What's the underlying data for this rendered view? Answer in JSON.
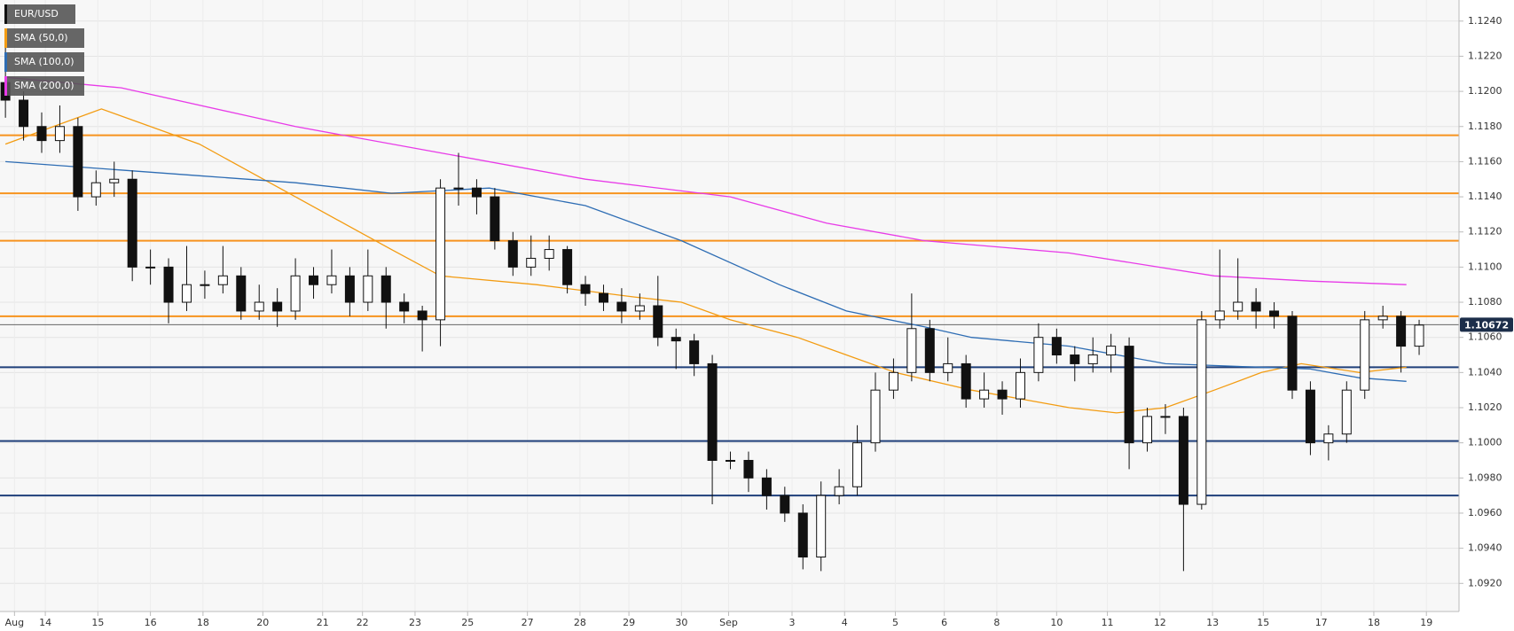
{
  "chart_data": {
    "type": "candlestick",
    "title": "EUR/USD",
    "x": [
      0,
      1,
      2,
      3,
      4,
      5,
      6,
      7,
      8,
      9,
      10,
      11,
      12,
      13,
      14,
      15,
      16,
      17,
      18,
      19,
      20,
      21,
      22,
      23,
      24,
      25,
      26,
      27,
      28,
      29,
      30,
      31,
      32,
      33,
      34,
      35,
      36,
      37,
      38,
      39,
      40,
      41,
      42,
      43,
      44,
      45,
      46,
      47,
      48,
      49,
      50,
      51,
      52,
      53,
      54,
      55,
      56,
      57,
      58,
      59,
      60,
      61,
      62,
      63,
      64,
      65,
      66,
      67,
      68,
      69,
      70,
      71,
      72,
      73,
      74,
      75,
      76,
      77,
      78
    ],
    "open": [
      1.1205,
      1.1195,
      1.118,
      1.1172,
      1.118,
      1.114,
      1.1148,
      1.115,
      1.11,
      1.11,
      1.108,
      1.109,
      1.109,
      1.1095,
      1.1075,
      1.108,
      1.1075,
      1.1095,
      1.109,
      1.1095,
      1.108,
      1.1095,
      1.108,
      1.1075,
      1.107,
      1.1145,
      1.1145,
      1.114,
      1.1115,
      1.11,
      1.1105,
      1.111,
      1.109,
      1.1085,
      1.108,
      1.1075,
      1.1078,
      1.106,
      1.1058,
      1.1045,
      1.099,
      1.099,
      1.098,
      1.097,
      1.096,
      1.0935,
      1.097,
      1.0975,
      1.1,
      1.103,
      1.104,
      1.1065,
      1.104,
      1.1045,
      1.1025,
      1.103,
      1.1025,
      1.104,
      1.106,
      1.105,
      1.1045,
      1.105,
      1.1055,
      1.1,
      1.1015,
      1.1015,
      1.0965,
      1.107,
      1.1075,
      1.108,
      1.1075,
      1.1072,
      1.103,
      1.1,
      1.1005,
      1.103,
      1.107,
      1.1072,
      1.1055
    ],
    "high": [
      1.1225,
      1.12,
      1.1188,
      1.1192,
      1.1185,
      1.1155,
      1.116,
      1.1155,
      1.111,
      1.1105,
      1.1112,
      1.1098,
      1.1112,
      1.11,
      1.109,
      1.1088,
      1.1105,
      1.11,
      1.111,
      1.11,
      1.111,
      1.11,
      1.1085,
      1.1078,
      1.115,
      1.1165,
      1.115,
      1.1145,
      1.112,
      1.1118,
      1.1118,
      1.1112,
      1.1095,
      1.109,
      1.1088,
      1.1085,
      1.1095,
      1.1065,
      1.1062,
      1.105,
      1.0995,
      1.0995,
      1.0985,
      1.0975,
      1.0965,
      1.0978,
      1.0985,
      1.101,
      1.104,
      1.1048,
      1.1085,
      1.107,
      1.106,
      1.105,
      1.104,
      1.1035,
      1.1048,
      1.1068,
      1.1065,
      1.1055,
      1.106,
      1.1062,
      1.106,
      1.102,
      1.1022,
      1.102,
      1.1075,
      1.111,
      1.1105,
      1.1088,
      1.108,
      1.1075,
      1.1035,
      1.101,
      1.1035,
      1.1075,
      1.1078,
      1.1075,
      1.107
    ],
    "low": [
      1.1185,
      1.1172,
      1.1165,
      1.1165,
      1.1132,
      1.1135,
      1.114,
      1.1092,
      1.109,
      1.1068,
      1.1075,
      1.1082,
      1.1085,
      1.107,
      1.107,
      1.1066,
      1.107,
      1.1082,
      1.1085,
      1.1072,
      1.1075,
      1.1065,
      1.1068,
      1.1052,
      1.1055,
      1.1135,
      1.113,
      1.111,
      1.1095,
      1.1095,
      1.1098,
      1.1085,
      1.1078,
      1.1075,
      1.1068,
      1.107,
      1.1055,
      1.1042,
      1.1038,
      1.0965,
      1.0985,
      1.0972,
      1.0962,
      1.0955,
      1.0928,
      1.0927,
      1.0965,
      1.097,
      1.0995,
      1.1025,
      1.1035,
      1.1035,
      1.1035,
      1.102,
      1.102,
      1.1016,
      1.102,
      1.1035,
      1.1045,
      1.1035,
      1.104,
      1.104,
      1.0985,
      1.0995,
      1.1005,
      1.0927,
      1.0962,
      1.1065,
      1.107,
      1.1065,
      1.1065,
      1.1025,
      1.0993,
      1.099,
      1.1,
      1.1025,
      1.1065,
      1.104,
      1.105
    ],
    "close": [
      1.1195,
      1.118,
      1.1172,
      1.118,
      1.114,
      1.1148,
      1.115,
      1.11,
      1.11,
      1.108,
      1.109,
      1.109,
      1.1095,
      1.1075,
      1.108,
      1.1075,
      1.1095,
      1.109,
      1.1095,
      1.108,
      1.1095,
      1.108,
      1.1075,
      1.107,
      1.1145,
      1.1145,
      1.114,
      1.1115,
      1.11,
      1.1105,
      1.111,
      1.109,
      1.1085,
      1.108,
      1.1075,
      1.1078,
      1.106,
      1.1058,
      1.1045,
      1.099,
      1.099,
      1.098,
      1.097,
      1.096,
      1.0935,
      1.097,
      1.0975,
      1.1,
      1.103,
      1.104,
      1.1065,
      1.104,
      1.1045,
      1.1025,
      1.103,
      1.1025,
      1.104,
      1.106,
      1.105,
      1.1045,
      1.105,
      1.1055,
      1.1,
      1.1015,
      1.1015,
      1.0965,
      1.107,
      1.1075,
      1.108,
      1.1075,
      1.1072,
      1.103,
      1.1,
      1.1005,
      1.103,
      1.107,
      1.1072,
      1.1055,
      1.1067
    ],
    "series": [
      {
        "name": "SMA (50,0)",
        "color": "#f39c12",
        "x": [
          0,
          5.3,
          10.7,
          16,
          21.3,
          24,
          29.3,
          34.7,
          37.3,
          40,
          43.7,
          46.4,
          49.1,
          53.3,
          56,
          58.7,
          61.3,
          64,
          66.7,
          69.3,
          71.5,
          74.7,
          77.3
        ],
        "values": [
          1.117,
          1.119,
          1.117,
          1.114,
          1.111,
          1.1095,
          1.109,
          1.1083,
          1.108,
          1.107,
          1.106,
          1.105,
          1.104,
          1.103,
          1.1025,
          1.102,
          1.1017,
          1.102,
          1.103,
          1.104,
          1.1045,
          1.104,
          1.1043
        ]
      },
      {
        "name": "SMA (100,0)",
        "color": "#2e6db4",
        "x": [
          0,
          10.7,
          16,
          21.3,
          26.7,
          32,
          37.3,
          42.7,
          46.4,
          50.7,
          53.3,
          58.7,
          64,
          69.3,
          72,
          74.7,
          77.3
        ],
        "values": [
          1.116,
          1.1152,
          1.1148,
          1.1142,
          1.1145,
          1.1135,
          1.1115,
          1.109,
          1.1075,
          1.1066,
          1.106,
          1.1055,
          1.1045,
          1.1043,
          1.1042,
          1.1037,
          1.1035
        ]
      },
      {
        "name": "SMA (200,0)",
        "color": "#e83be8",
        "x": [
          0,
          6.4,
          16,
          24,
          32,
          40,
          45.3,
          50.7,
          58.7,
          66.7,
          72,
          77.3
        ],
        "values": [
          1.1208,
          1.1202,
          1.118,
          1.1165,
          1.115,
          1.114,
          1.1125,
          1.1115,
          1.1108,
          1.1095,
          1.1092,
          1.109
        ]
      }
    ],
    "levels": [
      {
        "value": 1.1175,
        "color": "#f7931e"
      },
      {
        "value": 1.1142,
        "color": "#f7931e"
      },
      {
        "value": 1.1115,
        "color": "#f7931e"
      },
      {
        "value": 1.1072,
        "color": "#f7931e"
      },
      {
        "value": 1.1043,
        "color": "#1f3f7a"
      },
      {
        "value": 1.1001,
        "color": "#1f3f7a"
      },
      {
        "value": 1.097,
        "color": "#1f3f7a"
      }
    ],
    "last_price": 1.10672,
    "xlim": [
      -0.3,
      80.2
    ],
    "ylim": [
      1.0904,
      1.1252
    ],
    "yticks": [
      {
        "value": 1.124,
        "label": "1.1240"
      },
      {
        "value": 1.122,
        "label": "1.1220"
      },
      {
        "value": 1.12,
        "label": "1.1200"
      },
      {
        "value": 1.118,
        "label": "1.1180"
      },
      {
        "value": 1.116,
        "label": "1.1160"
      },
      {
        "value": 1.114,
        "label": "1.1140"
      },
      {
        "value": 1.112,
        "label": "1.1120"
      },
      {
        "value": 1.11,
        "label": "1.1100"
      },
      {
        "value": 1.108,
        "label": "1.1080"
      },
      {
        "value": 1.106,
        "label": "1.1060"
      },
      {
        "value": 1.104,
        "label": "1.1040"
      },
      {
        "value": 1.102,
        "label": "1.1020"
      },
      {
        "value": 1.1,
        "label": "1.1000"
      },
      {
        "value": 1.098,
        "label": "1.0980"
      },
      {
        "value": 1.096,
        "label": "1.0960"
      },
      {
        "value": 1.094,
        "label": "1.0940"
      },
      {
        "value": 1.092,
        "label": "1.0920"
      }
    ],
    "xticks": [
      {
        "value": 0.5,
        "label": "Aug"
      },
      {
        "value": 2.2,
        "label": "14"
      },
      {
        "value": 5.1,
        "label": "15"
      },
      {
        "value": 8,
        "label": "16"
      },
      {
        "value": 10.9,
        "label": "18"
      },
      {
        "value": 14.2,
        "label": "20"
      },
      {
        "value": 17.5,
        "label": "21"
      },
      {
        "value": 19.7,
        "label": "22"
      },
      {
        "value": 22.6,
        "label": "23"
      },
      {
        "value": 25.5,
        "label": "25"
      },
      {
        "value": 28.8,
        "label": "27"
      },
      {
        "value": 31.7,
        "label": "28"
      },
      {
        "value": 34.4,
        "label": "29"
      },
      {
        "value": 37.3,
        "label": "30"
      },
      {
        "value": 39.9,
        "label": "Sep"
      },
      {
        "value": 43.4,
        "label": "3"
      },
      {
        "value": 46.3,
        "label": "4"
      },
      {
        "value": 49.1,
        "label": "5"
      },
      {
        "value": 51.8,
        "label": "6"
      },
      {
        "value": 54.7,
        "label": "8"
      },
      {
        "value": 58,
        "label": "10"
      },
      {
        "value": 60.8,
        "label": "11"
      },
      {
        "value": 63.7,
        "label": "12"
      },
      {
        "value": 66.6,
        "label": "13"
      },
      {
        "value": 69.4,
        "label": "15"
      },
      {
        "value": 72.6,
        "label": "17"
      },
      {
        "value": 75.5,
        "label": "18"
      },
      {
        "value": 78.4,
        "label": "19"
      }
    ],
    "grid": true
  }
}
